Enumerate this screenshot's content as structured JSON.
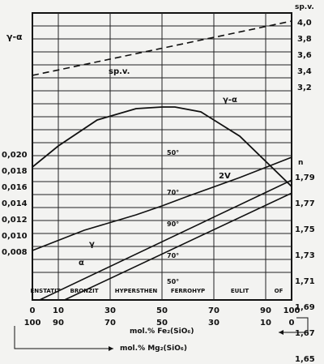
{
  "chart_data": {
    "type": "line",
    "x": {
      "ticks": [
        0,
        10,
        30,
        50,
        70,
        90,
        100
      ],
      "range": [
        0,
        100
      ]
    },
    "x_secondary": {
      "ticks": [
        100,
        90,
        70,
        50,
        30,
        10,
        0
      ]
    },
    "x_labels": {
      "fe": "mol.% Fe₂(SiO₆)",
      "mg": "mol.% Mg₂(SiO₆)"
    },
    "left_axis": {
      "title": "γ-α",
      "ticks": [
        "0,020",
        "0,018",
        "0,016",
        "0,014",
        "0,012",
        "0,010",
        "0,008"
      ],
      "tick_values": [
        0.02,
        0.018,
        0.016,
        0.014,
        0.012,
        0.01,
        0.008
      ],
      "range": [
        0.0055,
        0.0215
      ]
    },
    "right_axis_spv": {
      "title": "sp.v.",
      "ticks": [
        "4,0",
        "3,8",
        "3,6",
        "3,4",
        "3,2"
      ],
      "tick_values": [
        4.0,
        3.8,
        3.6,
        3.4,
        3.2
      ]
    },
    "right_axis_n": {
      "title": "n",
      "ticks": [
        "1,79",
        "1,77",
        "1,75",
        "1,73",
        "1,71",
        "1,69",
        "1,67",
        "1,65"
      ],
      "tick_values": [
        1.79,
        1.77,
        1.75,
        1.73,
        1.71,
        1.69,
        1.67,
        1.65
      ]
    },
    "series": [
      {
        "name": "sp.v.",
        "axis": "spv",
        "style": "dashed",
        "x": [
          0,
          100
        ],
        "y": [
          3.35,
          4.02
        ]
      },
      {
        "name": "γ-α",
        "axis": "left",
        "x": [
          0,
          20,
          40,
          50,
          60,
          80,
          100
        ],
        "y": [
          0.0082,
          0.0107,
          0.0126,
          0.0137,
          0.0149,
          0.0172,
          0.0197
        ]
      },
      {
        "name": "γ",
        "axis": "n",
        "x": [
          0,
          100
        ],
        "y": [
          1.693,
          1.788
        ]
      },
      {
        "name": "α",
        "axis": "n",
        "x": [
          0,
          100
        ],
        "y": [
          1.684,
          1.778
        ]
      },
      {
        "name": "2V",
        "axis": "angle",
        "x": [
          0,
          10,
          25,
          40,
          50,
          55,
          65,
          80,
          100
        ],
        "y": [
          -3,
          10,
          26,
          33,
          34,
          34,
          31,
          16,
          -15
        ]
      }
    ],
    "angle_scale": {
      "ticks": [
        "50°",
        "70°",
        "90°",
        "70°",
        "50°"
      ]
    },
    "annotations": [
      "sp.v.",
      "γ-α",
      "2V",
      "γ",
      "α"
    ],
    "composition_bands": [
      "ENSTATIT",
      "BRONZIT",
      "HYPERSTHEN",
      "FERROHYP",
      "EULIT",
      "OF"
    ],
    "composition_bounds": [
      0,
      10,
      30,
      50,
      70,
      90,
      100
    ]
  }
}
